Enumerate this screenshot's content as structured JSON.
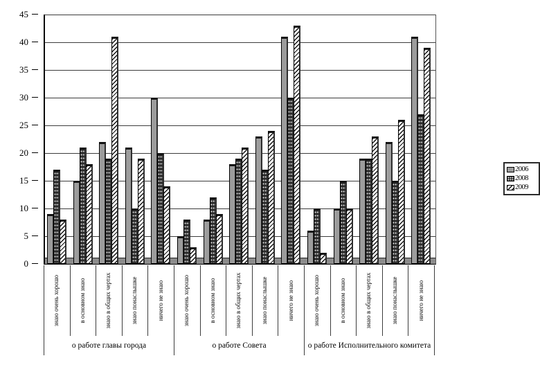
{
  "chart_data": {
    "type": "bar",
    "title": "",
    "xlabel": "",
    "ylabel": "",
    "ylim": [
      0,
      45
    ],
    "ytick_interval": 5,
    "y_tick_labels": [
      "0",
      "5",
      "10",
      "15",
      "20",
      "25",
      "30",
      "35",
      "40",
      "45"
    ],
    "grid": true,
    "legend_position": "right",
    "group_labels": [
      "о работе главы города",
      "о работе Совета",
      "о работе Исполнительного комитета"
    ],
    "categories": [
      "знаю очень хорошо",
      "в основном знаю",
      "знаю в общих чертах",
      "знаю понаслышке",
      "ничего не знаю"
    ],
    "series": [
      {
        "name": "2006",
        "pattern": "solid-gray",
        "values": [
          [
            9,
            15,
            22,
            21,
            30
          ],
          [
            5,
            8,
            18,
            23,
            41
          ],
          [
            6,
            10,
            19,
            22,
            41
          ]
        ]
      },
      {
        "name": "2008",
        "pattern": "dark-dotted",
        "values": [
          [
            17,
            21,
            19,
            10,
            20
          ],
          [
            8,
            12,
            19,
            17,
            30
          ],
          [
            10,
            15,
            19,
            15,
            27
          ]
        ]
      },
      {
        "name": "2009",
        "pattern": "diagonal-hatch",
        "values": [
          [
            8,
            18,
            41,
            19,
            14
          ],
          [
            3,
            9,
            21,
            24,
            43
          ],
          [
            2,
            10,
            23,
            26,
            39
          ]
        ]
      }
    ],
    "colors": {
      "bar_2006": "#9c9c9c",
      "bar_2008": "#2f2f2f",
      "bar_2009": "#ffffff",
      "hatch_line": "#111111",
      "grid_line": "#3c3c3c",
      "floor": "#8c8c8c",
      "axis": "#000000",
      "legend_border": "#2b2b2b"
    }
  }
}
